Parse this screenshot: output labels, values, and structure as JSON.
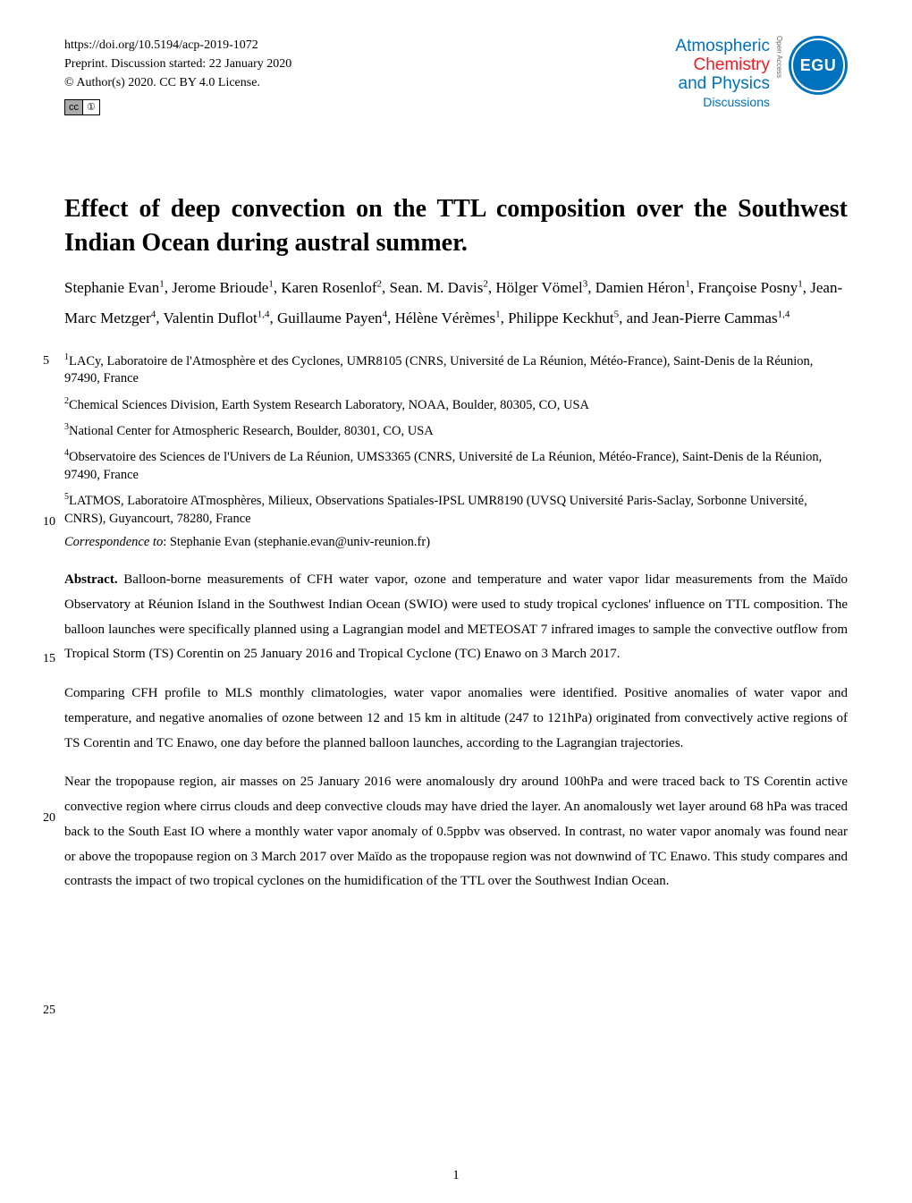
{
  "header": {
    "doi": "https://doi.org/10.5194/acp-2019-1072",
    "preprint_line": "Preprint. Discussion started: 22 January 2020",
    "copyright_line": "© Author(s) 2020. CC BY 4.0 License.",
    "cc_label_cc": "cc",
    "cc_label_by": "①",
    "journal": {
      "line1": "Atmospheric",
      "line2": "Chemistry",
      "line3": "and Physics",
      "line4": "Discussions",
      "open_access": "Open Access"
    },
    "egu_text": "EGU"
  },
  "title": "Effect of deep convection on the TTL composition over the Southwest Indian Ocean during austral summer.",
  "authors_html": "Stephanie Evan¹, Jerome Brioude¹, Karen Rosenlof², Sean. M. Davis², Hölger Vömel³, Damien Héron¹, Françoise Posny¹, Jean-Marc Metzger⁴, Valentin Duflot¹,⁴, Guillaume Payen⁴, Hélène Vérèmes¹, Philippe Keckhut⁵, and Jean-Pierre Cammas¹,⁴",
  "authors": {
    "part1": "Stephanie Evan",
    "sup1": "1",
    "part2": ", Jerome Brioude",
    "sup2": "1",
    "part3": ", Karen Rosenlof",
    "sup3": "2",
    "part4": ", Sean. M. Davis",
    "sup4": "2",
    "part5": ", Hölger Vömel",
    "sup5": "3",
    "part6": ", Damien Héron",
    "sup6": "1",
    "part7": ", Françoise Posny",
    "sup7": "1",
    "part8": ", Jean-Marc Metzger",
    "sup8": "4",
    "part9": ", Valentin Duflot",
    "sup9": "1,4",
    "part10": ", Guillaume Payen",
    "sup10": "4",
    "part11": ", Hélène Vérèmes",
    "sup11": "1",
    "part12": ", Philippe Keckhut",
    "sup12": "5",
    "part13": ", and Jean-Pierre Cammas",
    "sup13": "1,4"
  },
  "affiliations": {
    "a1": {
      "sup": "1",
      "text": "LACy, Laboratoire de l'Atmosphère et des Cyclones, UMR8105 (CNRS, Université de La Réunion, Météo-France), Saint-Denis de la Réunion, 97490, France"
    },
    "a2": {
      "sup": "2",
      "text": "Chemical Sciences Division, Earth System Research Laboratory, NOAA, Boulder, 80305, CO, USA"
    },
    "a3": {
      "sup": "3",
      "text": "National Center for Atmospheric Research, Boulder, 80301, CO, USA"
    },
    "a4": {
      "sup": "4",
      "text": "Observatoire des Sciences de l'Univers de La Réunion, UMS3365 (CNRS, Université de La Réunion, Météo-France), Saint-Denis de la Réunion, 97490, France"
    },
    "a5": {
      "sup": "5",
      "text": "LATMOS, Laboratoire ATmosphères, Milieux, Observations Spatiales-IPSL UMR8190 (UVSQ Université Paris-Saclay, Sorbonne Université, CNRS), Guyancourt, 78280, France"
    }
  },
  "correspondence": {
    "label": "Correspondence to",
    "text": ": Stephanie Evan (stephanie.evan@univ-reunion.fr)"
  },
  "abstract": {
    "label": "Abstract.",
    "text": " Balloon-borne measurements of CFH water vapor, ozone and temperature and water vapor lidar measurements from the Maïdo Observatory at Réunion Island in the Southwest Indian Ocean (SWIO) were used to study tropical cyclones' influence on TTL composition. The balloon launches were specifically planned using a Lagrangian model and METEOSAT 7 infrared images to sample the convective outflow from Tropical Storm (TS) Corentin on 25 January 2016 and Tropical Cyclone (TC) Enawo on 3 March 2017."
  },
  "para2": "Comparing CFH profile to MLS monthly climatologies, water vapor anomalies were identified. Positive anomalies of water vapor and temperature, and negative anomalies of ozone between 12 and 15 km in altitude (247 to 121hPa) originated from convectively active regions of TS Corentin and TC Enawo, one day before the planned balloon launches, according to the Lagrangian trajectories.",
  "para3": "Near the tropopause region, air masses on 25 January 2016 were anomalously dry around 100hPa and were traced back to TS Corentin active convective region where cirrus clouds and deep convective clouds may have dried the layer. An anomalously wet layer around 68 hPa was traced back to the South East IO where a monthly water vapor anomaly of 0.5ppbv was observed. In contrast, no water vapor anomaly was found near or above the tropopause region on 3 March 2017 over Maïdo as the tropopause region was not downwind of TC Enawo. This study compares and contrasts the impact of two tropical cyclones on the humidification of the TTL over the Southwest Indian Ocean.",
  "line_numbers": {
    "n5": "5",
    "n10": "10",
    "n15": "15",
    "n20": "20",
    "n25": "25"
  },
  "page_number": "1",
  "colors": {
    "blue": "#0071bc",
    "red": "#ed1c24",
    "text": "#000000",
    "background": "#ffffff"
  }
}
